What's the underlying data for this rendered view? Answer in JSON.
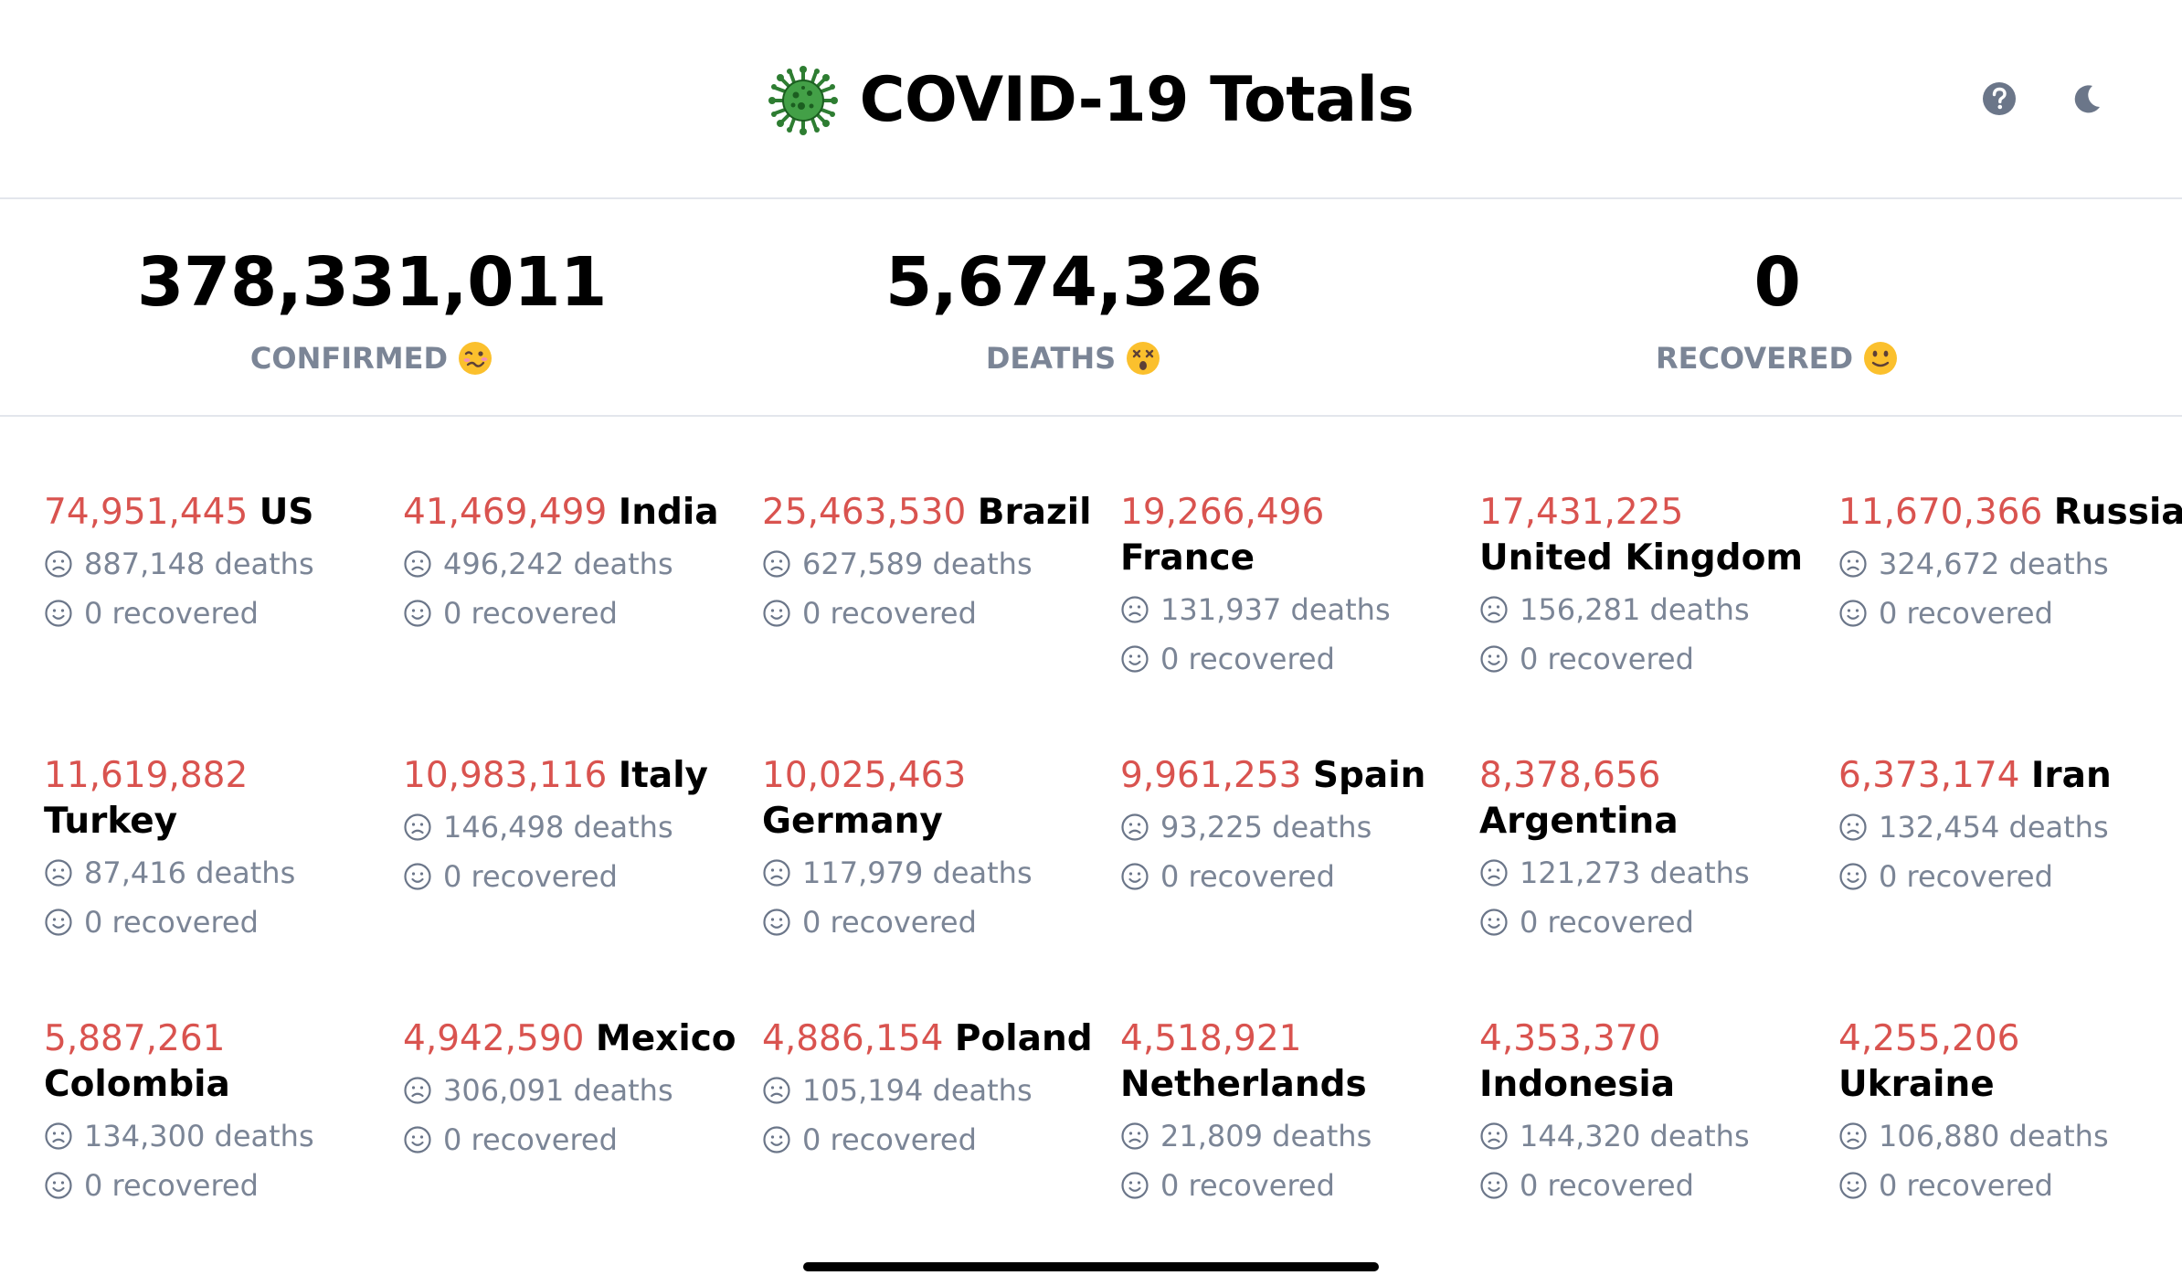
{
  "header": {
    "title": "COVID-19 Totals",
    "icons": {
      "virus": "virus-icon",
      "help": "question-circle-icon",
      "theme": "moon-icon"
    }
  },
  "totals": [
    {
      "value": "378,331,011",
      "label": "CONFIRMED",
      "emoji": "woozy-face-icon"
    },
    {
      "value": "5,674,326",
      "label": "DEATHS",
      "emoji": "dizzy-face-icon"
    },
    {
      "value": "0",
      "label": "RECOVERED",
      "emoji": "slightly-smiling-face-icon"
    }
  ],
  "countries": [
    {
      "cases": "74,951,445",
      "name": "US",
      "deaths": "887,148 deaths",
      "recovered": "0 recovered"
    },
    {
      "cases": "41,469,499",
      "name": "India",
      "deaths": "496,242 deaths",
      "recovered": "0 recovered"
    },
    {
      "cases": "25,463,530",
      "name": "Brazil",
      "deaths": "627,589 deaths",
      "recovered": "0 recovered"
    },
    {
      "cases": "19,266,496",
      "name": "France",
      "deaths": "131,937 deaths",
      "recovered": "0 recovered"
    },
    {
      "cases": "17,431,225",
      "name": "United Kingdom",
      "deaths": "156,281 deaths",
      "recovered": "0 recovered"
    },
    {
      "cases": "11,670,366",
      "name": "Russia",
      "deaths": "324,672 deaths",
      "recovered": "0 recovered"
    },
    {
      "cases": "11,619,882",
      "name": "Turkey",
      "deaths": "87,416 deaths",
      "recovered": "0 recovered"
    },
    {
      "cases": "10,983,116",
      "name": "Italy",
      "deaths": "146,498 deaths",
      "recovered": "0 recovered"
    },
    {
      "cases": "10,025,463",
      "name": "Germany",
      "deaths": "117,979 deaths",
      "recovered": "0 recovered"
    },
    {
      "cases": "9,961,253",
      "name": "Spain",
      "deaths": "93,225 deaths",
      "recovered": "0 recovered"
    },
    {
      "cases": "8,378,656",
      "name": "Argentina",
      "deaths": "121,273 deaths",
      "recovered": "0 recovered"
    },
    {
      "cases": "6,373,174",
      "name": "Iran",
      "deaths": "132,454 deaths",
      "recovered": "0 recovered"
    },
    {
      "cases": "5,887,261",
      "name": "Colombia",
      "deaths": "134,300 deaths",
      "recovered": "0 recovered"
    },
    {
      "cases": "4,942,590",
      "name": "Mexico",
      "deaths": "306,091 deaths",
      "recovered": "0 recovered"
    },
    {
      "cases": "4,886,154",
      "name": "Poland",
      "deaths": "105,194 deaths",
      "recovered": "0 recovered"
    },
    {
      "cases": "4,518,921",
      "name": "Netherlands",
      "deaths": "21,809 deaths",
      "recovered": "0 recovered"
    },
    {
      "cases": "4,353,370",
      "name": "Indonesia",
      "deaths": "144,320 deaths",
      "recovered": "0 recovered"
    },
    {
      "cases": "4,255,206",
      "name": "Ukraine",
      "deaths": "106,880 deaths",
      "recovered": "0 recovered"
    }
  ],
  "colors": {
    "cases": "#d9534f",
    "muted": "#7b8596",
    "divider": "#e3e6ec",
    "icon": "#6b7689"
  }
}
